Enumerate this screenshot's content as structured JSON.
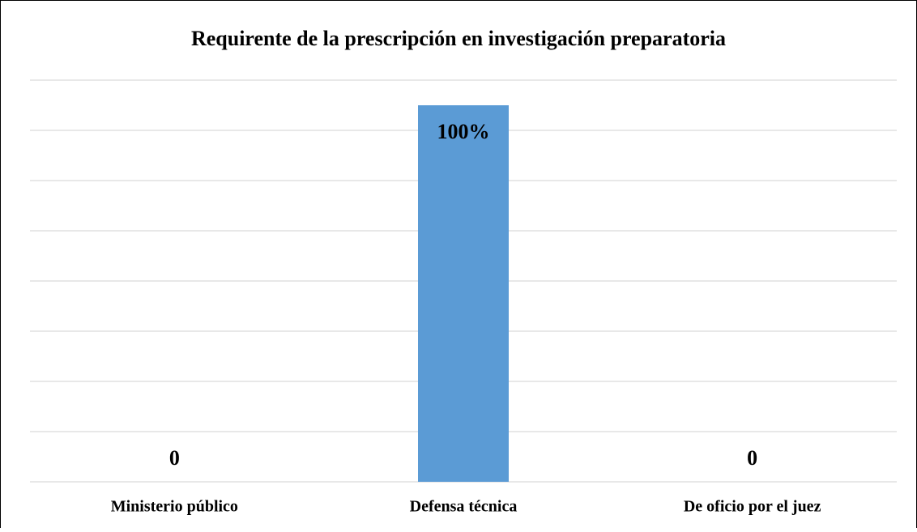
{
  "chart_data": {
    "type": "bar",
    "title": "Requirente de la prescripción en investigación preparatoria",
    "categories": [
      "Ministerio público",
      "Defensa técnica",
      "De oficio por el juez"
    ],
    "values": [
      0,
      100,
      0
    ],
    "value_labels": [
      "0",
      "100%",
      "0"
    ],
    "color": "#5b9bd5",
    "ylim": [
      0,
      106.67
    ],
    "yticks": [
      0,
      13.33,
      26.67,
      40,
      53.33,
      66.67,
      80,
      93.33,
      106.67
    ],
    "grid": true
  }
}
